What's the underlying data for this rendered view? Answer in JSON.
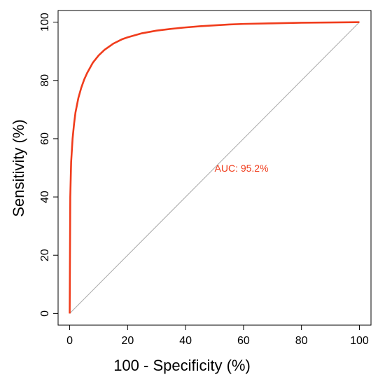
{
  "chart_data": {
    "type": "line",
    "title": "",
    "xlabel": "100 -  Specificity (%)",
    "ylabel": "Sensitivity (%)",
    "xlim": [
      -4,
      104
    ],
    "ylim": [
      -4,
      104
    ],
    "xticks": [
      0,
      20,
      40,
      60,
      80,
      100
    ],
    "yticks": [
      0,
      20,
      40,
      60,
      80,
      100
    ],
    "grid": false,
    "annotation": {
      "text": "AUC: 95.2%",
      "x": 50,
      "y": 48.7
    },
    "series": [
      {
        "color": "#f03c1c",
        "x": [
          0,
          0.2,
          0.5,
          1,
          1.5,
          2,
          3,
          4,
          5,
          6,
          8,
          10,
          12,
          15,
          18,
          20,
          25,
          30,
          35,
          40,
          45,
          50,
          55,
          60,
          70,
          80,
          90,
          100
        ],
        "y": [
          0,
          40,
          52,
          60,
          65,
          69,
          74,
          77.5,
          80.3,
          82.5,
          86.1,
          88.6,
          90.5,
          92.6,
          94.1,
          94.8,
          96.2,
          97.1,
          97.7,
          98.2,
          98.6,
          98.9,
          99.2,
          99.4,
          99.6,
          99.8,
          99.9,
          100
        ]
      },
      {
        "color": "#a8a8a8",
        "x": [
          0,
          100
        ],
        "y": [
          0,
          100
        ]
      }
    ]
  }
}
